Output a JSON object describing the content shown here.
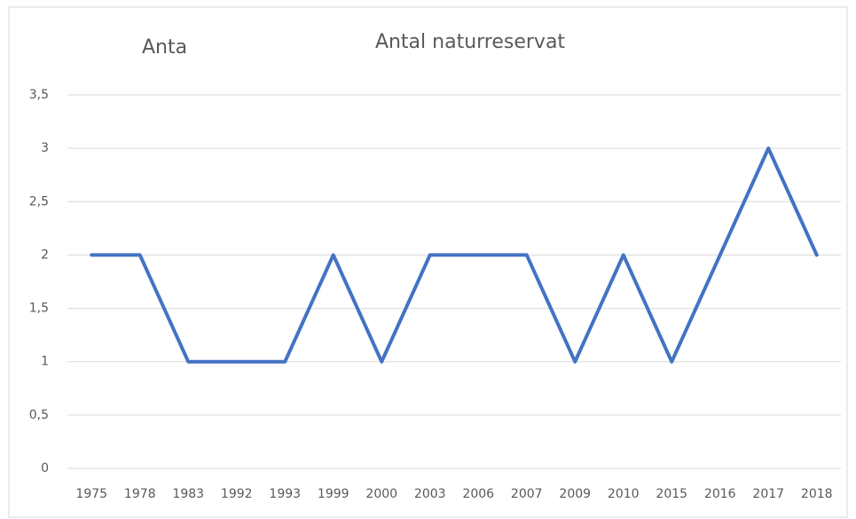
{
  "chart_data": {
    "type": "line",
    "title": "Antal naturreservat",
    "annotations": [
      "Anta"
    ],
    "categories": [
      "1975",
      "1978",
      "1983",
      "1992",
      "1993",
      "1999",
      "2000",
      "2003",
      "2006",
      "2007",
      "2009",
      "2010",
      "2015",
      "2016",
      "2017",
      "2018"
    ],
    "values": [
      2,
      2,
      1,
      1,
      1,
      2,
      1,
      2,
      2,
      2,
      1,
      2,
      1,
      2,
      3,
      2
    ],
    "color": "#4472c4",
    "ylim": [
      0,
      3.5
    ],
    "yticks": [
      0,
      {
        "value": 0.5,
        "label": "0,5"
      },
      1,
      {
        "value": 1.5,
        "label": "1,5"
      },
      2,
      {
        "value": 2.5,
        "label": "2,5"
      },
      3,
      {
        "value": 3.5,
        "label": "3,5"
      }
    ],
    "grid": true
  }
}
